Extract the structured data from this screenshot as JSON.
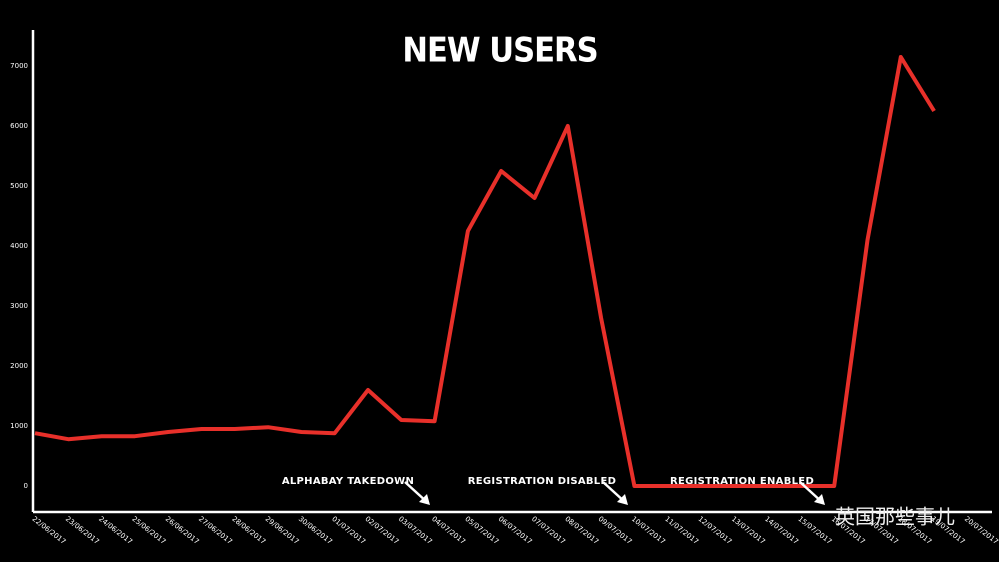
{
  "chart_data": {
    "type": "line",
    "title": "NEW USERS",
    "categories": [
      "22/06/2017",
      "23/06/2017",
      "24/06/2017",
      "25/06/2017",
      "26/06/2017",
      "27/06/2017",
      "28/06/2017",
      "29/06/2017",
      "30/06/2017",
      "01/07/2017",
      "02/07/2017",
      "03/07/2017",
      "04/07/2017",
      "05/07/2017",
      "06/07/2017",
      "07/07/2017",
      "08/07/2017",
      "09/07/2017",
      "10/07/2017",
      "11/07/2017",
      "12/07/2017",
      "13/07/2017",
      "14/07/2017",
      "15/07/2017",
      "16/07/2017",
      "17/07/2017",
      "18/07/2017",
      "19/07/2017",
      "20/07/2017"
    ],
    "values": [
      880,
      780,
      830,
      830,
      900,
      950,
      950,
      980,
      900,
      880,
      1600,
      1100,
      1080,
      4250,
      5250,
      4800,
      6000,
      2800,
      0,
      0,
      0,
      0,
      0,
      0,
      0,
      4100,
      7150,
      6250,
      null
    ],
    "color": "#e8302a",
    "ylim": [
      -400,
      7600
    ],
    "yticks": [
      0,
      1000,
      2000,
      3000,
      4000,
      5000,
      6000,
      7000
    ],
    "annotations": [
      "ALPHABAY TAKEDOWN",
      "REGISTRATION DISABLED",
      "REGISTRATION ENABLED"
    ]
  },
  "watermark": "英国那些事儿"
}
